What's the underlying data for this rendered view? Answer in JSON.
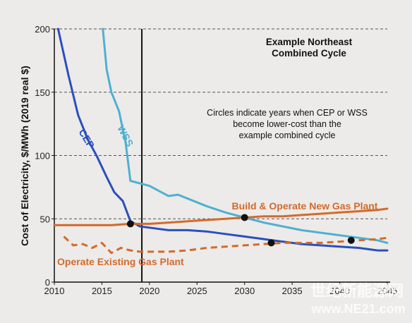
{
  "chart_data": {
    "type": "line",
    "title": "Example Northeast",
    "subtitle": "Combined Cycle",
    "annotation": [
      "Circles indicate years when CEP or WSS",
      "become lower-cost than the",
      "example combined cycle"
    ],
    "ylabel": "Cost of Electricity, $/MWh (2019 real $)",
    "xlabel": "",
    "xlim": [
      2010,
      2045
    ],
    "ylim": [
      0,
      200
    ],
    "xticks": [
      2010,
      2015,
      2020,
      2025,
      2030,
      2035,
      2040,
      2045
    ],
    "yticks": [
      0,
      50,
      100,
      150,
      200
    ],
    "grid": "horizontal dashed",
    "vertical_marker_x": 2019.2,
    "colors": {
      "CEP": "#2a4fbd",
      "WSS": "#4fb0d2",
      "gas": "#d46a2c",
      "marker": "#111111",
      "background": "#ecebe9"
    },
    "series": [
      {
        "name": "CEP",
        "color": "#2a4fbd",
        "style": "solid",
        "x": [
          2010.4,
          2011.5,
          2012.5,
          2013.5,
          2014.5,
          2015.5,
          2016.3,
          2017.2,
          2018.0,
          2019.0,
          2020.0,
          2022.0,
          2024.0,
          2026.0,
          2028.0,
          2030.0,
          2032.0,
          2034.0,
          2036.0,
          2038.0,
          2040.0,
          2042.0,
          2044.0,
          2045.0
        ],
        "y": [
          200,
          163,
          132,
          113,
          99,
          83,
          71,
          64,
          48,
          44,
          43,
          41,
          41,
          40,
          38,
          36,
          34,
          32,
          30,
          29,
          28,
          27,
          25,
          25
        ]
      },
      {
        "name": "WSS",
        "color": "#4fb0d2",
        "style": "solid",
        "x": [
          2015.1,
          2015.5,
          2016.0,
          2016.8,
          2017.5,
          2018.0,
          2020.0,
          2022.0,
          2023.0,
          2026.0,
          2028.0,
          2030.0,
          2032.0,
          2034.0,
          2036.0,
          2038.0,
          2040.0,
          2042.0,
          2044.0,
          2045.0
        ],
        "y": [
          200,
          168,
          150,
          135,
          110,
          80,
          76,
          68,
          69,
          60,
          55,
          51,
          47,
          44,
          41,
          39,
          37,
          35,
          33,
          31
        ]
      },
      {
        "name": "Build & Operate New Gas Plant",
        "color": "#d46a2c",
        "style": "solid",
        "x": [
          2010.0,
          2012.0,
          2014.0,
          2016.0,
          2018.0,
          2020.0,
          2022.0,
          2024.0,
          2026.0,
          2028.0,
          2030.0,
          2032.0,
          2034.0,
          2036.0,
          2038.0,
          2040.0,
          2042.0,
          2044.0,
          2045.0
        ],
        "y": [
          45,
          45,
          45,
          45,
          46,
          46,
          47,
          48,
          49,
          50,
          51,
          52,
          52,
          53,
          54,
          55,
          56,
          57,
          58
        ]
      },
      {
        "name": "Operate Existing Gas Plant",
        "color": "#d46a2c",
        "style": "dashed",
        "x": [
          2011.0,
          2012.0,
          2013.0,
          2014.0,
          2015.0,
          2016.0,
          2017.0,
          2018.0,
          2019.0,
          2020.0,
          2022.0,
          2024.0,
          2026.0,
          2028.0,
          2030.0,
          2032.0,
          2034.0,
          2036.0,
          2038.0,
          2040.0,
          2042.0,
          2044.0,
          2045.0
        ],
        "y": [
          36,
          29,
          30,
          27,
          31,
          23,
          27,
          25,
          24,
          24,
          24,
          25,
          27,
          28,
          29,
          30,
          31,
          31,
          31,
          32,
          33,
          34,
          35
        ]
      }
    ],
    "crossover_points": [
      {
        "x": 2018.0,
        "y": 46
      },
      {
        "x": 2030.0,
        "y": 51
      },
      {
        "x": 2032.8,
        "y": 31
      },
      {
        "x": 2041.2,
        "y": 33
      }
    ],
    "series_labels": {
      "CEP": "CEP",
      "WSS": "WSS",
      "new_gas": "Build & Operate New Gas Plant",
      "existing_gas": "Operate Existing Gas Plant"
    },
    "watermark": [
      "世纪新能源网",
      "www.NE21.com"
    ]
  }
}
